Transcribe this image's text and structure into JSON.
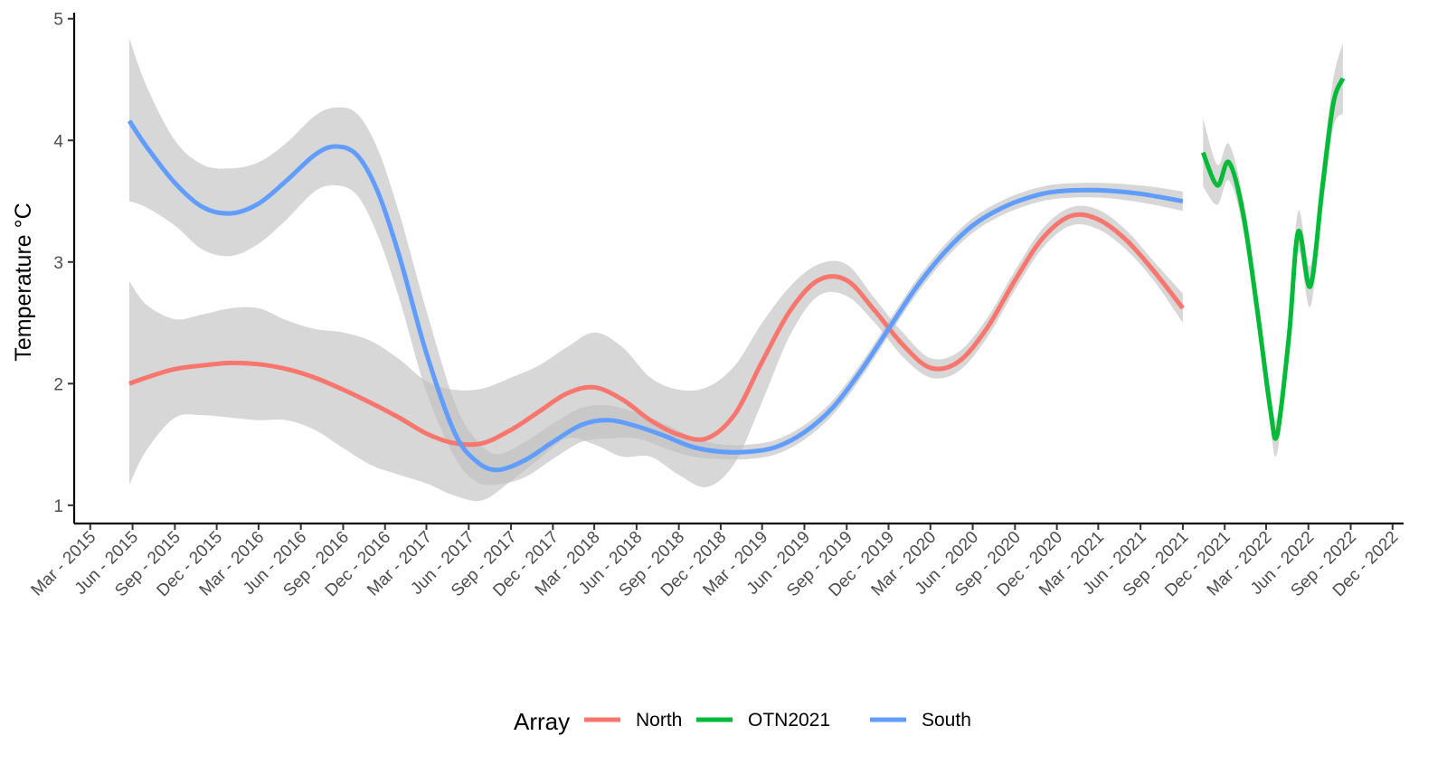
{
  "chart_data": {
    "type": "line",
    "title": "",
    "xlabel": "",
    "ylabel": "Temperature °C",
    "xlim": [
      "2015-01-25",
      "2022-12-25"
    ],
    "ylim": [
      0.85,
      5.05
    ],
    "y_ticks": [
      1,
      2,
      3,
      4,
      5
    ],
    "x_ticks": [
      {
        "date": "2015-03-01",
        "label": "Mar - 2015"
      },
      {
        "date": "2015-06-01",
        "label": "Jun - 2015"
      },
      {
        "date": "2015-09-01",
        "label": "Sep - 2015"
      },
      {
        "date": "2015-12-01",
        "label": "Dec - 2015"
      },
      {
        "date": "2016-03-01",
        "label": "Mar - 2016"
      },
      {
        "date": "2016-06-01",
        "label": "Jun - 2016"
      },
      {
        "date": "2016-09-01",
        "label": "Sep - 2016"
      },
      {
        "date": "2016-12-01",
        "label": "Dec - 2016"
      },
      {
        "date": "2017-03-01",
        "label": "Mar - 2017"
      },
      {
        "date": "2017-06-01",
        "label": "Jun - 2017"
      },
      {
        "date": "2017-09-01",
        "label": "Sep - 2017"
      },
      {
        "date": "2017-12-01",
        "label": "Dec - 2017"
      },
      {
        "date": "2018-03-01",
        "label": "Mar - 2018"
      },
      {
        "date": "2018-06-01",
        "label": "Jun - 2018"
      },
      {
        "date": "2018-09-01",
        "label": "Sep - 2018"
      },
      {
        "date": "2018-12-01",
        "label": "Dec - 2018"
      },
      {
        "date": "2019-03-01",
        "label": "Mar - 2019"
      },
      {
        "date": "2019-06-01",
        "label": "Jun - 2019"
      },
      {
        "date": "2019-09-01",
        "label": "Sep - 2019"
      },
      {
        "date": "2019-12-01",
        "label": "Dec - 2019"
      },
      {
        "date": "2020-03-01",
        "label": "Mar - 2020"
      },
      {
        "date": "2020-06-01",
        "label": "Jun - 2020"
      },
      {
        "date": "2020-09-01",
        "label": "Sep - 2020"
      },
      {
        "date": "2020-12-01",
        "label": "Dec - 2020"
      },
      {
        "date": "2021-03-01",
        "label": "Mar - 2021"
      },
      {
        "date": "2021-06-01",
        "label": "Jun - 2021"
      },
      {
        "date": "2021-09-01",
        "label": "Sep - 2021"
      },
      {
        "date": "2021-12-01",
        "label": "Dec - 2021"
      },
      {
        "date": "2022-03-01",
        "label": "Mar - 2022"
      },
      {
        "date": "2022-06-01",
        "label": "Jun - 2022"
      },
      {
        "date": "2022-09-01",
        "label": "Sep - 2022"
      },
      {
        "date": "2022-12-01",
        "label": "Dec - 2022"
      }
    ],
    "grid": false,
    "legend": {
      "position": "bottom",
      "title": "Array"
    },
    "ribbon_color": "#bfbfbf",
    "series": [
      {
        "name": "North",
        "color": "#F8766D",
        "points": [
          {
            "x": "2015-05-25",
            "y": 2.0,
            "lo": 1.17,
            "hi": 2.84
          },
          {
            "x": "2015-07-01",
            "y": 2.05,
            "lo": 1.45,
            "hi": 2.65
          },
          {
            "x": "2015-09-01",
            "y": 2.12,
            "lo": 1.72,
            "hi": 2.53
          },
          {
            "x": "2015-11-01",
            "y": 2.15,
            "lo": 1.74,
            "hi": 2.57
          },
          {
            "x": "2016-01-01",
            "y": 2.17,
            "lo": 1.72,
            "hi": 2.62
          },
          {
            "x": "2016-03-01",
            "y": 2.16,
            "lo": 1.7,
            "hi": 2.62
          },
          {
            "x": "2016-05-01",
            "y": 2.12,
            "lo": 1.7,
            "hi": 2.52
          },
          {
            "x": "2016-07-01",
            "y": 2.05,
            "lo": 1.62,
            "hi": 2.45
          },
          {
            "x": "2016-09-01",
            "y": 1.95,
            "lo": 1.47,
            "hi": 2.42
          },
          {
            "x": "2016-11-01",
            "y": 1.84,
            "lo": 1.33,
            "hi": 2.35
          },
          {
            "x": "2017-01-01",
            "y": 1.72,
            "lo": 1.25,
            "hi": 2.2
          },
          {
            "x": "2017-03-01",
            "y": 1.59,
            "lo": 1.18,
            "hi": 2.02
          },
          {
            "x": "2017-05-01",
            "y": 1.51,
            "lo": 1.08,
            "hi": 1.95
          },
          {
            "x": "2017-07-01",
            "y": 1.51,
            "lo": 1.04,
            "hi": 1.96
          },
          {
            "x": "2017-09-01",
            "y": 1.62,
            "lo": 1.2,
            "hi": 2.05
          },
          {
            "x": "2017-11-01",
            "y": 1.77,
            "lo": 1.38,
            "hi": 2.15
          },
          {
            "x": "2018-01-01",
            "y": 1.92,
            "lo": 1.55,
            "hi": 2.3
          },
          {
            "x": "2018-03-01",
            "y": 1.97,
            "lo": 1.5,
            "hi": 2.42
          },
          {
            "x": "2018-05-01",
            "y": 1.87,
            "lo": 1.4,
            "hi": 2.3
          },
          {
            "x": "2018-07-01",
            "y": 1.7,
            "lo": 1.4,
            "hi": 2.05
          },
          {
            "x": "2018-09-01",
            "y": 1.58,
            "lo": 1.25,
            "hi": 1.95
          },
          {
            "x": "2018-11-01",
            "y": 1.55,
            "lo": 1.15,
            "hi": 1.97
          },
          {
            "x": "2019-01-01",
            "y": 1.75,
            "lo": 1.35,
            "hi": 2.15
          },
          {
            "x": "2019-03-01",
            "y": 2.18,
            "lo": 1.85,
            "hi": 2.5
          },
          {
            "x": "2019-05-01",
            "y": 2.6,
            "lo": 2.4,
            "hi": 2.8
          },
          {
            "x": "2019-07-01",
            "y": 2.85,
            "lo": 2.72,
            "hi": 2.98
          },
          {
            "x": "2019-09-01",
            "y": 2.85,
            "lo": 2.72,
            "hi": 2.98
          },
          {
            "x": "2019-11-01",
            "y": 2.6,
            "lo": 2.5,
            "hi": 2.7
          },
          {
            "x": "2020-01-01",
            "y": 2.32,
            "lo": 2.22,
            "hi": 2.42
          },
          {
            "x": "2020-03-01",
            "y": 2.13,
            "lo": 2.05,
            "hi": 2.21
          },
          {
            "x": "2020-05-01",
            "y": 2.18,
            "lo": 2.1,
            "hi": 2.26
          },
          {
            "x": "2020-07-01",
            "y": 2.45,
            "lo": 2.37,
            "hi": 2.53
          },
          {
            "x": "2020-09-01",
            "y": 2.85,
            "lo": 2.77,
            "hi": 2.93
          },
          {
            "x": "2020-11-01",
            "y": 3.2,
            "lo": 3.12,
            "hi": 3.28
          },
          {
            "x": "2021-01-01",
            "y": 3.38,
            "lo": 3.3,
            "hi": 3.45
          },
          {
            "x": "2021-03-01",
            "y": 3.35,
            "lo": 3.27,
            "hi": 3.43
          },
          {
            "x": "2021-05-01",
            "y": 3.18,
            "lo": 3.1,
            "hi": 3.26
          },
          {
            "x": "2021-07-01",
            "y": 2.92,
            "lo": 2.84,
            "hi": 3.0
          },
          {
            "x": "2021-09-01",
            "y": 2.62,
            "lo": 2.5,
            "hi": 2.74
          }
        ]
      },
      {
        "name": "OTN2021",
        "color": "#00BA38",
        "points": [
          {
            "x": "2021-10-15",
            "y": 3.9,
            "lo": 3.62,
            "hi": 4.18
          },
          {
            "x": "2021-11-15",
            "y": 3.63,
            "lo": 3.47,
            "hi": 3.8
          },
          {
            "x": "2021-12-10",
            "y": 3.82,
            "lo": 3.67,
            "hi": 3.97
          },
          {
            "x": "2022-01-10",
            "y": 3.4,
            "lo": 3.27,
            "hi": 3.53
          },
          {
            "x": "2022-02-10",
            "y": 2.6,
            "lo": 2.45,
            "hi": 2.75
          },
          {
            "x": "2022-03-10",
            "y": 1.8,
            "lo": 1.65,
            "hi": 1.95
          },
          {
            "x": "2022-03-25",
            "y": 1.58,
            "lo": 1.43,
            "hi": 1.73
          },
          {
            "x": "2022-04-20",
            "y": 2.4,
            "lo": 2.25,
            "hi": 2.55
          },
          {
            "x": "2022-05-10",
            "y": 3.25,
            "lo": 3.08,
            "hi": 3.42
          },
          {
            "x": "2022-06-05",
            "y": 2.8,
            "lo": 2.63,
            "hi": 2.97
          },
          {
            "x": "2022-07-01",
            "y": 3.6,
            "lo": 3.42,
            "hi": 3.78
          },
          {
            "x": "2022-07-25",
            "y": 4.3,
            "lo": 4.1,
            "hi": 4.5
          },
          {
            "x": "2022-08-15",
            "y": 4.51,
            "lo": 4.22,
            "hi": 4.8
          }
        ]
      },
      {
        "name": "South",
        "color": "#619CFF",
        "points": [
          {
            "x": "2015-05-25",
            "y": 4.16,
            "lo": 3.5,
            "hi": 4.84
          },
          {
            "x": "2015-07-01",
            "y": 3.95,
            "lo": 3.45,
            "hi": 4.45
          },
          {
            "x": "2015-09-01",
            "y": 3.65,
            "lo": 3.3,
            "hi": 4.0
          },
          {
            "x": "2015-11-01",
            "y": 3.45,
            "lo": 3.1,
            "hi": 3.8
          },
          {
            "x": "2016-01-01",
            "y": 3.4,
            "lo": 3.05,
            "hi": 3.77
          },
          {
            "x": "2016-03-01",
            "y": 3.48,
            "lo": 3.15,
            "hi": 3.82
          },
          {
            "x": "2016-05-01",
            "y": 3.67,
            "lo": 3.35,
            "hi": 3.98
          },
          {
            "x": "2016-07-01",
            "y": 3.88,
            "lo": 3.58,
            "hi": 4.2
          },
          {
            "x": "2016-08-15",
            "y": 3.95,
            "lo": 3.63,
            "hi": 4.27
          },
          {
            "x": "2016-10-01",
            "y": 3.88,
            "lo": 3.55,
            "hi": 4.22
          },
          {
            "x": "2016-11-15",
            "y": 3.58,
            "lo": 3.22,
            "hi": 3.93
          },
          {
            "x": "2017-01-01",
            "y": 3.05,
            "lo": 2.7,
            "hi": 3.4
          },
          {
            "x": "2017-03-01",
            "y": 2.25,
            "lo": 1.93,
            "hi": 2.6
          },
          {
            "x": "2017-05-01",
            "y": 1.6,
            "lo": 1.4,
            "hi": 1.85
          },
          {
            "x": "2017-06-15",
            "y": 1.37,
            "lo": 1.2,
            "hi": 1.55
          },
          {
            "x": "2017-08-01",
            "y": 1.29,
            "lo": 1.17,
            "hi": 1.42
          },
          {
            "x": "2017-10-01",
            "y": 1.37,
            "lo": 1.23,
            "hi": 1.52
          },
          {
            "x": "2017-12-01",
            "y": 1.52,
            "lo": 1.38,
            "hi": 1.67
          },
          {
            "x": "2018-02-01",
            "y": 1.66,
            "lo": 1.52,
            "hi": 1.8
          },
          {
            "x": "2018-04-01",
            "y": 1.7,
            "lo": 1.55,
            "hi": 1.82
          },
          {
            "x": "2018-06-01",
            "y": 1.65,
            "lo": 1.55,
            "hi": 1.76
          },
          {
            "x": "2018-08-01",
            "y": 1.57,
            "lo": 1.47,
            "hi": 1.67
          },
          {
            "x": "2018-10-01",
            "y": 1.48,
            "lo": 1.4,
            "hi": 1.56
          },
          {
            "x": "2018-12-01",
            "y": 1.44,
            "lo": 1.38,
            "hi": 1.5
          },
          {
            "x": "2019-02-01",
            "y": 1.44,
            "lo": 1.38,
            "hi": 1.5
          },
          {
            "x": "2019-04-01",
            "y": 1.48,
            "lo": 1.42,
            "hi": 1.54
          },
          {
            "x": "2019-06-01",
            "y": 1.6,
            "lo": 1.54,
            "hi": 1.66
          },
          {
            "x": "2019-08-01",
            "y": 1.8,
            "lo": 1.74,
            "hi": 1.86
          },
          {
            "x": "2019-10-01",
            "y": 2.1,
            "lo": 2.04,
            "hi": 2.16
          },
          {
            "x": "2019-12-01",
            "y": 2.45,
            "lo": 2.39,
            "hi": 2.51
          },
          {
            "x": "2020-02-01",
            "y": 2.8,
            "lo": 2.74,
            "hi": 2.86
          },
          {
            "x": "2020-04-01",
            "y": 3.08,
            "lo": 3.02,
            "hi": 3.14
          },
          {
            "x": "2020-06-01",
            "y": 3.3,
            "lo": 3.24,
            "hi": 3.36
          },
          {
            "x": "2020-08-01",
            "y": 3.44,
            "lo": 3.38,
            "hi": 3.5
          },
          {
            "x": "2020-10-01",
            "y": 3.53,
            "lo": 3.47,
            "hi": 3.59
          },
          {
            "x": "2020-12-01",
            "y": 3.58,
            "lo": 3.52,
            "hi": 3.64
          },
          {
            "x": "2021-03-01",
            "y": 3.59,
            "lo": 3.53,
            "hi": 3.65
          },
          {
            "x": "2021-06-01",
            "y": 3.56,
            "lo": 3.49,
            "hi": 3.63
          },
          {
            "x": "2021-09-01",
            "y": 3.5,
            "lo": 3.42,
            "hi": 3.58
          }
        ]
      }
    ]
  }
}
